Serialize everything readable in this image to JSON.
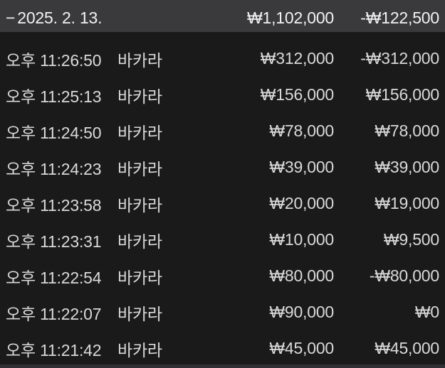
{
  "colors": {
    "background": "#1a1a1b",
    "section_header_bg": "#3a3a3c",
    "next_section_sliver_bg": "#313133",
    "header_text": "#f2f2f2",
    "row_text": "#d9d9d9"
  },
  "header": {
    "collapse_indicator": "−",
    "date": "2025. 2. 13.",
    "total_amount": "₩1,102,000",
    "total_net": "-₩122,500"
  },
  "rows": [
    {
      "time": "오후 11:26:50",
      "game": "바카라",
      "amount": "₩312,000",
      "result": "-₩312,000"
    },
    {
      "time": "오후 11:25:13",
      "game": "바카라",
      "amount": "₩156,000",
      "result": "₩156,000"
    },
    {
      "time": "오후 11:24:50",
      "game": "바카라",
      "amount": "₩78,000",
      "result": "₩78,000"
    },
    {
      "time": "오후 11:24:23",
      "game": "바카라",
      "amount": "₩39,000",
      "result": "₩39,000"
    },
    {
      "time": "오후 11:23:58",
      "game": "바카라",
      "amount": "₩20,000",
      "result": "₩19,000"
    },
    {
      "time": "오후 11:23:31",
      "game": "바카라",
      "amount": "₩10,000",
      "result": "₩9,500"
    },
    {
      "time": "오후 11:22:54",
      "game": "바카라",
      "amount": "₩80,000",
      "result": "-₩80,000"
    },
    {
      "time": "오후 11:22:07",
      "game": "바카라",
      "amount": "₩90,000",
      "result": "₩0"
    },
    {
      "time": "오후 11:21:42",
      "game": "바카라",
      "amount": "₩45,000",
      "result": "₩45,000"
    }
  ]
}
